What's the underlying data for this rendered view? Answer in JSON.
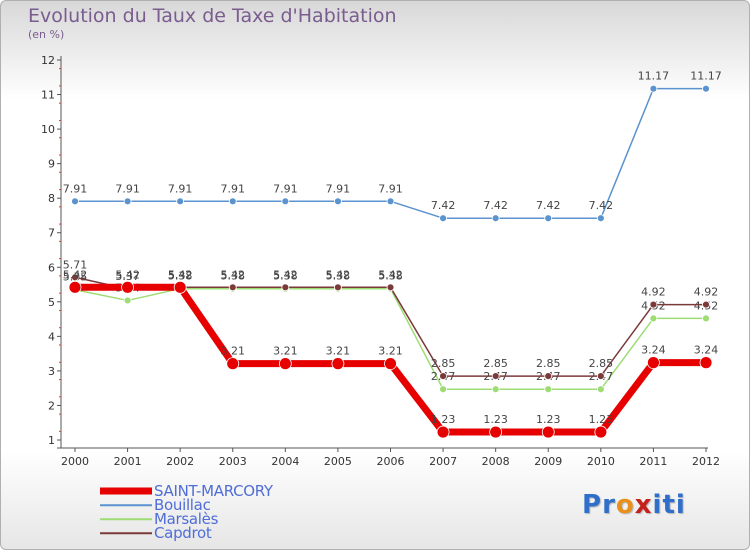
{
  "title": "Evolution du Taux de Taxe d'Habitation",
  "subtitle": "(en %)",
  "logo": {
    "text": "Proxiti",
    "letters": [
      "P",
      "r",
      "o",
      "x",
      "i",
      "t",
      "i"
    ],
    "colors": [
      "#2f6fc9",
      "#2f6fc9",
      "#e8901b",
      "#c4201c",
      "#2f6fc9",
      "#2f6fc9",
      "#2f6fc9"
    ]
  },
  "chart_data": {
    "type": "line",
    "title": "Evolution du Taux de Taxe d'Habitation",
    "ylabel": "(en %)",
    "x": [
      "2000",
      "2001",
      "2002",
      "2003",
      "2004",
      "2005",
      "2006",
      "2007",
      "2008",
      "2009",
      "2010",
      "2011",
      "2012"
    ],
    "ylim": [
      1,
      12
    ],
    "yticks": [
      1,
      2,
      3,
      4,
      5,
      6,
      7,
      8,
      9,
      10,
      11,
      12
    ],
    "grid": false,
    "series": [
      {
        "name": "Bouillac",
        "color": "#5b93cf",
        "width": 1.5,
        "marker": 3.5,
        "values": [
          7.91,
          7.91,
          7.91,
          7.91,
          7.91,
          7.91,
          7.91,
          7.42,
          7.42,
          7.42,
          7.42,
          11.17,
          11.17
        ],
        "labels": [
          "7.91",
          "7.91",
          "7.91",
          "7.91",
          "7.91",
          "7.91",
          "7.91",
          "7.42",
          "7.42",
          "7.42",
          "7.42",
          "11.17",
          "11.17"
        ]
      },
      {
        "name": "Marsalès",
        "color": "#9edc74",
        "width": 1.5,
        "marker": 3.5,
        "values": [
          5.35,
          5.04,
          5.38,
          5.38,
          5.38,
          5.38,
          5.38,
          2.47,
          2.47,
          2.47,
          2.47,
          4.52,
          4.52
        ],
        "labels": [
          "5.35",
          "5.04",
          "5.38",
          "5.38",
          "5.38",
          "5.38",
          "5.38",
          "2.47",
          "2.47",
          "2.47",
          "2.47",
          "4.52",
          "4.52"
        ]
      },
      {
        "name": "Capdrot",
        "color": "#7b3a3a",
        "width": 1.5,
        "marker": 3.5,
        "values": [
          5.71,
          5.37,
          5.42,
          5.42,
          5.42,
          5.42,
          5.42,
          2.85,
          2.85,
          2.85,
          2.85,
          4.92,
          4.92
        ],
        "labels": [
          "5.71",
          "5.37",
          "5.42",
          "5.42",
          "5.42",
          "5.42",
          "5.42",
          "2.85",
          "2.85",
          "2.85",
          "2.85",
          "4.92",
          "4.92"
        ]
      },
      {
        "name": "SAINT-MARCORY",
        "color": "#e60000",
        "width": 7,
        "marker": 6,
        "values": [
          5.42,
          5.42,
          5.42,
          3.21,
          3.21,
          3.21,
          3.21,
          1.23,
          1.23,
          1.23,
          1.23,
          3.24,
          3.24
        ],
        "labels": [
          "5.42",
          "5.42",
          "5.42",
          "3.21",
          "3.21",
          "3.21",
          "3.21",
          "1.23",
          "1.23",
          "1.23",
          "1.23",
          "3.24",
          "3.24"
        ]
      }
    ],
    "legend_order": [
      "SAINT-MARCORY",
      "Bouillac",
      "Marsalès",
      "Capdrot"
    ],
    "legend_position": "bottom-left"
  }
}
